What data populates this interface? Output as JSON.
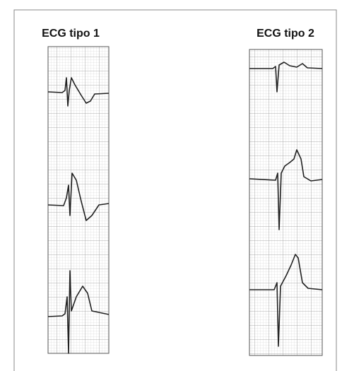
{
  "panels": [
    {
      "title": "ECG tipo 1"
    },
    {
      "title": "ECG tipo 2"
    }
  ]
}
